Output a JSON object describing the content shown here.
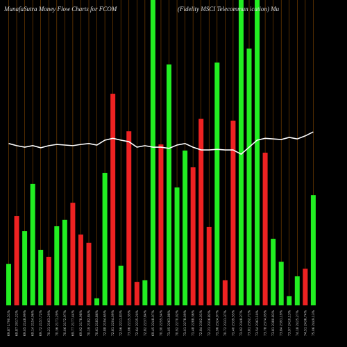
{
  "chart_data": {
    "type": "bar",
    "title": "MunafaSutra  Money Flow  Charts for FCOM",
    "subtitle": "(Fidelity MSCI Telecommun                ication) Mu",
    "categories": [
      "69.87 1790.51%",
      "69.87 2017.22%",
      "69.05 2148.99%",
      "69.14 2154.96%",
      "69.72 2157.72%",
      "70.21 2163.29%",
      "70.36 2171.29%",
      "70.06 2172.97%",
      "69.77 2177.44%",
      "69.92 2178.98%",
      "70.19 2182.84%",
      "70.61 2183.86%",
      "72.88 2194.65%",
      "72.81 2204.09%",
      "72.56 2211.83%",
      "73.06 2215.35%",
      "72.64 2235.20%",
      "72.82 2237.84%",
      "69.45 2248.07%",
      "70.30 2255.54%",
      "71.05 2263.88%",
      "70.92 2270.02%",
      "71.01 2278.09%",
      "71.48 2288.36%",
      "72.84 2302.01%",
      "72.21 2316.82%",
      "71.96 2324.97%",
      "70.72 2331.37%",
      "71.40 2339.55%",
      "71.92 2348.27%",
      "73.81 2352.71%",
      "73.54 2361.10%",
      "73.78 2374.05%",
      "73.81 2380.83%",
      "73.84 2391.19%",
      "73.97 2410.13%",
      "74.18 2425.27%",
      "74.51 2436.74%",
      "75.06 2449.13%"
    ],
    "values": [
      13.6,
      29.3,
      24.3,
      39.8,
      18.2,
      15.9,
      25.9,
      28.0,
      33.6,
      23.2,
      20.5,
      2.3,
      43.4,
      69.3,
      13.0,
      57.0,
      7.7,
      8.2,
      100,
      52.7,
      78.9,
      38.6,
      50.7,
      45.2,
      61.1,
      25.7,
      79.5,
      8.2,
      60.5,
      100,
      84.1,
      100,
      50.0,
      21.8,
      14.3,
      3.0,
      9.5,
      12.0,
      36.1
    ],
    "bar_colors": [
      "#22ee22",
      "#ee2222",
      "#22ee22",
      "#22ee22",
      "#22ee22",
      "#ee2222",
      "#22ee22",
      "#22ee22",
      "#ee2222",
      "#ee2222",
      "#ee2222",
      "#22ee22",
      "#22ee22",
      "#ee2222",
      "#22ee22",
      "#ee2222",
      "#ee2222",
      "#22ee22",
      "#22ee22",
      "#ee2222",
      "#22ee22",
      "#22ee22",
      "#22ee22",
      "#ee2222",
      "#ee2222",
      "#ee2222",
      "#22ee22",
      "#ee2222",
      "#ee2222",
      "#22ee22",
      "#22ee22",
      "#22ee22",
      "#ee2222",
      "#22ee22",
      "#22ee22",
      "#22ee22",
      "#22ee22",
      "#ee2222",
      "#22ee22"
    ],
    "line_values": [
      53.0,
      52.3,
      51.8,
      52.3,
      51.6,
      52.3,
      52.7,
      52.5,
      52.3,
      52.7,
      53.0,
      52.5,
      54.1,
      54.7,
      54.1,
      53.6,
      51.8,
      52.3,
      51.8,
      51.8,
      51.4,
      52.5,
      53.0,
      51.8,
      50.9,
      50.9,
      51.1,
      50.9,
      50.9,
      49.5,
      51.8,
      54.1,
      54.7,
      54.5,
      54.3,
      55.0,
      54.5,
      55.5,
      56.8
    ],
    "line_color": "#ffffff",
    "grid_color": "#8a4a00",
    "ylim": [
      0,
      100
    ],
    "grid": true
  }
}
